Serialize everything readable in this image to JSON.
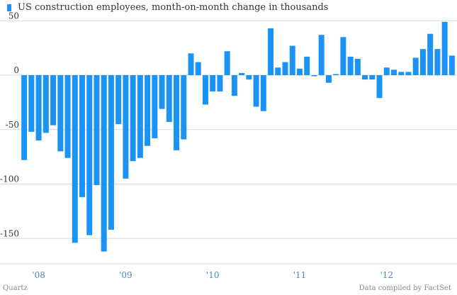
{
  "chart_data": {
    "type": "bar",
    "title": "US construction employees, month-on-month change in thousands",
    "ylim": [
      -165,
      55
    ],
    "y_ticks": [
      50,
      0,
      -50,
      -100,
      -150
    ],
    "y_tick_labels": [
      "50",
      "0",
      "-50",
      "-100",
      "-150"
    ],
    "x_tick_labels": [
      "'08",
      "'09",
      "'10",
      "'11",
      "'12"
    ],
    "x_tick_indices": [
      2,
      14,
      26,
      38,
      50
    ],
    "series": [
      {
        "name": "US construction employees, month-on-month change in thousands",
        "color": "#1a93f5",
        "values": [
          -78,
          -52,
          -60,
          -53,
          -46,
          -70,
          -76,
          -154,
          -112,
          -147,
          -101,
          -162,
          -142,
          -45,
          -95,
          -79,
          -76,
          -65,
          -58,
          -31,
          -43,
          -69,
          -59,
          20,
          12,
          -27,
          -15,
          -15,
          22,
          -19,
          2,
          -4,
          -29,
          -33,
          43,
          7,
          12,
          27,
          6,
          17,
          -1,
          37,
          -7,
          1,
          35,
          17,
          15,
          -4,
          -4,
          -21,
          7,
          5,
          3,
          3,
          16,
          24,
          38,
          24,
          49,
          18
        ]
      }
    ]
  },
  "footer": {
    "source_left": "Quartz",
    "source_right": "Data compiled by FactSet"
  }
}
